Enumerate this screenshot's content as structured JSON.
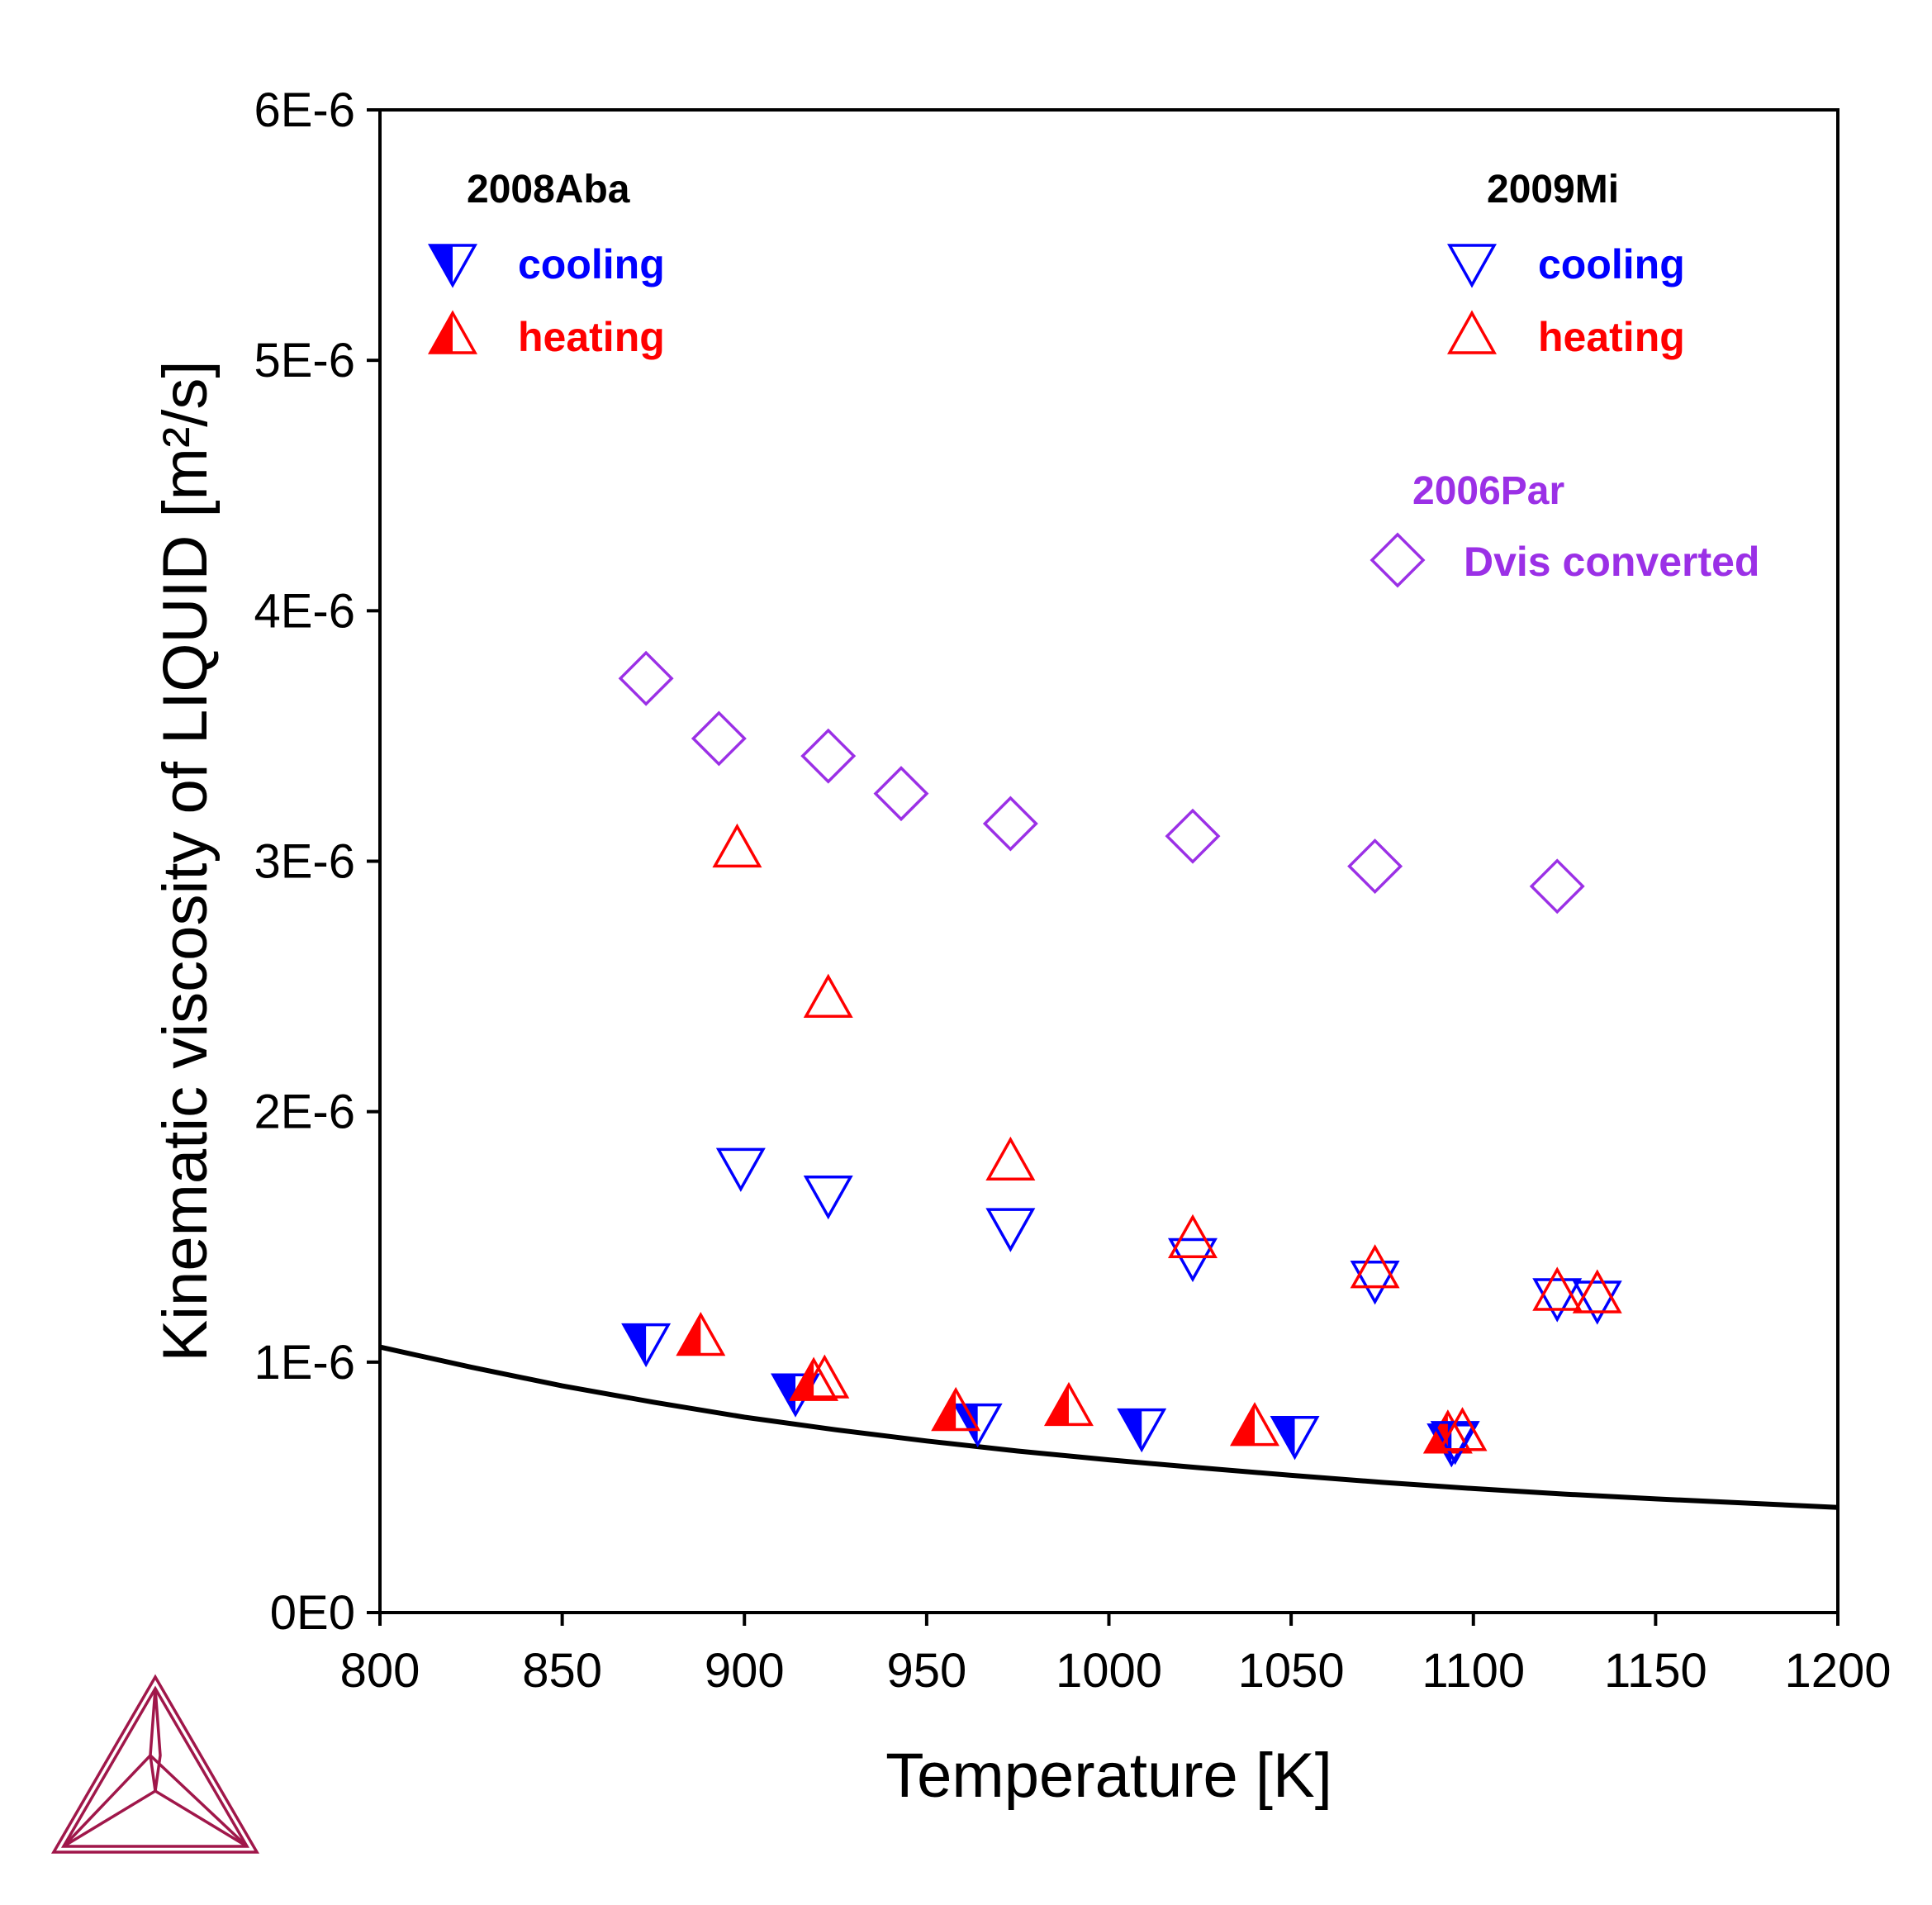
{
  "chart_data": {
    "type": "scatter",
    "xlabel": "Temperature [K]",
    "ylabel": "Kinematic viscosity of LIQUID [m²/s]",
    "xlim": [
      800,
      1200
    ],
    "ylim": [
      0,
      6e-06
    ],
    "x_ticks": [
      800,
      850,
      900,
      950,
      1000,
      1050,
      1100,
      1150,
      1200
    ],
    "x_tick_labels": [
      "800",
      "850",
      "900",
      "950",
      "1000",
      "1050",
      "1100",
      "1150",
      "1200"
    ],
    "y_ticks": [
      0,
      1e-06,
      2e-06,
      3e-06,
      4e-06,
      5e-06,
      6e-06
    ],
    "y_tick_labels": [
      "0E0",
      "1E-6",
      "2E-6",
      "3E-6",
      "4E-6",
      "5E-6",
      "6E-6"
    ],
    "grid": false,
    "legend": {
      "groups": [
        {
          "title": "2008Aba",
          "placement": "top-left",
          "entries": [
            {
              "label": "cooling",
              "series": "2008Aba cooling"
            },
            {
              "label": "heating",
              "series": "2008Aba heating"
            }
          ]
        },
        {
          "title": "2009Mi",
          "placement": "top-right",
          "entries": [
            {
              "label": "cooling",
              "series": "2009Mi cooling"
            },
            {
              "label": "heating",
              "series": "2009Mi heating"
            }
          ]
        },
        {
          "title": "2006Par",
          "placement": "right",
          "entries": [
            {
              "label": "Dvis converted",
              "series": "2006Par"
            }
          ]
        }
      ]
    },
    "line": {
      "color": "#000000",
      "x": [
        800,
        825,
        850,
        875,
        900,
        925,
        950,
        975,
        1000,
        1025,
        1050,
        1075,
        1100,
        1125,
        1150,
        1175,
        1200
      ],
      "y": [
        1.06e-06,
        9.8e-07,
        9.05e-07,
        8.4e-07,
        7.8e-07,
        7.3e-07,
        6.85e-07,
        6.45e-07,
        6.1e-07,
        5.78e-07,
        5.48e-07,
        5.2e-07,
        4.95e-07,
        4.73e-07,
        4.54e-07,
        4.37e-07,
        4.2e-07
      ]
    },
    "series": [
      {
        "name": "2008Aba cooling",
        "marker": "half-filled-triangle-down",
        "color": "#0000ff",
        "x": [
          873,
          914,
          964,
          1009,
          1051,
          1094
        ],
        "y": [
          1.08e-06,
          8.8e-07,
          7.6e-07,
          7.4e-07,
          7.1e-07,
          6.8e-07
        ]
      },
      {
        "name": "2008Aba heating",
        "marker": "half-filled-triangle-up",
        "color": "#ff0000",
        "x": [
          888,
          919,
          958,
          989,
          1040,
          1093
        ],
        "y": [
          1.1e-06,
          9.2e-07,
          8e-07,
          8.2e-07,
          7.4e-07,
          7.1e-07
        ]
      },
      {
        "name": "2009Mi cooling",
        "marker": "open-triangle-down",
        "color": "#0000ff",
        "x": [
          899,
          923,
          973,
          1023,
          1073,
          1123,
          1134,
          1095
        ],
        "y": [
          1.78e-06,
          1.67e-06,
          1.54e-06,
          1.42e-06,
          1.33e-06,
          1.26e-06,
          1.25e-06,
          6.9e-07
        ]
      },
      {
        "name": "2009Mi heating",
        "marker": "open-triangle-up",
        "color": "#ff0000",
        "x": [
          898,
          923,
          973,
          1023,
          1073,
          1123,
          1134,
          1097,
          922
        ],
        "y": [
          3.05e-06,
          2.45e-06,
          1.8e-06,
          1.49e-06,
          1.37e-06,
          1.28e-06,
          1.27e-06,
          7.2e-07,
          9.3e-07
        ]
      },
      {
        "name": "2006Par",
        "marker": "open-diamond",
        "color": "#9b30e6",
        "x": [
          873,
          893,
          923,
          943,
          973,
          1023,
          1073,
          1123
        ],
        "y": [
          3.73e-06,
          3.49e-06,
          3.42e-06,
          3.27e-06,
          3.15e-06,
          3.1e-06,
          2.98e-06,
          2.9e-06
        ]
      }
    ]
  },
  "colors": {
    "blue": "#0000ff",
    "red": "#ff0000",
    "purple": "#9b30e6",
    "logo": "#a0174a"
  },
  "icons": {
    "logo": "thermo-calc-triangle-logo"
  }
}
